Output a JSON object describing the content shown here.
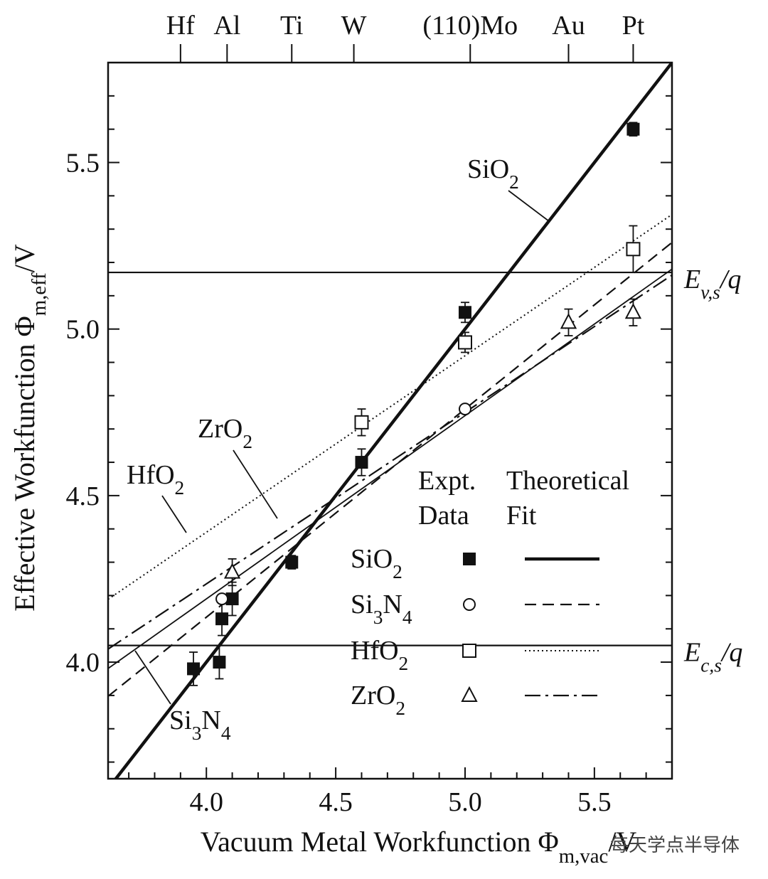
{
  "chart_data": {
    "type": "scatter",
    "xlabel": "Vacuum Metal Workfunction Φm,vac/V",
    "ylabel": "Effective Workfunction Φm,eff/V",
    "xlim": [
      3.62,
      5.8
    ],
    "ylim": [
      3.65,
      5.8
    ],
    "x_ticks": [
      "4.0",
      "4.5",
      "5.0",
      "5.5"
    ],
    "y_ticks": [
      "4.0",
      "4.5",
      "5.0",
      "5.5"
    ],
    "x_tick_values": [
      4.0,
      4.5,
      5.0,
      5.5
    ],
    "y_tick_values": [
      4.0,
      4.5,
      5.0,
      5.5
    ],
    "x_minor_step": 0.1,
    "y_minor_step": 0.1,
    "top_axis_metals": [
      {
        "label": "Hf",
        "x": 3.9
      },
      {
        "label": "Al",
        "x": 4.08
      },
      {
        "label": "Ti",
        "x": 4.33
      },
      {
        "label": "W",
        "x": 4.57
      },
      {
        "label": "(110)Mo",
        "x": 5.02
      },
      {
        "label": "Au",
        "x": 5.4
      },
      {
        "label": "Pt",
        "x": 5.65
      }
    ],
    "reference_lines": [
      {
        "label": "Ev,s/q",
        "y": 5.17
      },
      {
        "label": "Ec,s/q",
        "y": 4.05
      }
    ],
    "series": [
      {
        "name": "SiO2",
        "marker": "filled-square",
        "line_style": "thick-solid",
        "fit": {
          "slope": 1.0,
          "intercept": 0.0
        },
        "points": [
          {
            "x": 3.95,
            "y": 3.98,
            "err": 0.05
          },
          {
            "x": 4.05,
            "y": 4.0,
            "err": 0.05
          },
          {
            "x": 4.06,
            "y": 4.13,
            "err": 0.05
          },
          {
            "x": 4.1,
            "y": 4.19,
            "err": 0.05
          },
          {
            "x": 4.33,
            "y": 4.3,
            "err": 0.02
          },
          {
            "x": 4.6,
            "y": 4.6,
            "err": 0.04
          },
          {
            "x": 5.0,
            "y": 5.05,
            "err": 0.03
          },
          {
            "x": 5.65,
            "y": 5.6,
            "err": 0.02
          }
        ]
      },
      {
        "name": "Si3N4",
        "marker": "open-circle",
        "line_style": "dashed",
        "fit": {
          "slope": 0.625,
          "intercept": 1.635
        },
        "points": [
          {
            "x": 4.06,
            "y": 4.19,
            "err": 0
          },
          {
            "x": 5.0,
            "y": 4.76,
            "err": 0
          }
        ]
      },
      {
        "name": "HfO2",
        "marker": "open-square",
        "line_style": "dotted",
        "fit": {
          "slope": 0.53,
          "intercept": 2.27
        },
        "points": [
          {
            "x": 4.6,
            "y": 4.72,
            "err": 0.04
          },
          {
            "x": 5.0,
            "y": 4.96,
            "err": 0.03
          },
          {
            "x": 5.65,
            "y": 5.24,
            "err": 0.07
          }
        ]
      },
      {
        "name": "ZrO2",
        "marker": "open-triangle",
        "line_style": "dash-dot",
        "fit": {
          "slope": 0.515,
          "intercept": 2.175
        },
        "points": [
          {
            "x": 4.1,
            "y": 4.27,
            "err": 0.04
          },
          {
            "x": 5.4,
            "y": 5.02,
            "err": 0.04
          },
          {
            "x": 5.65,
            "y": 5.05,
            "err": 0.04
          }
        ]
      }
    ],
    "thin_solid_line": {
      "slope": 0.55,
      "intercept": 1.99
    },
    "curve_annotations": [
      {
        "text": "SiO2",
        "base": "SiO",
        "sub": "2"
      },
      {
        "text": "HfO2",
        "base": "HfO",
        "sub": "2"
      },
      {
        "text": "ZrO2",
        "base": "ZrO",
        "sub": "2"
      },
      {
        "text": "Si3N4",
        "base": "Si",
        "sub": "3",
        "base2": "N",
        "sub2": "4"
      }
    ],
    "legend": {
      "header_col1": [
        "Expt.",
        "Data"
      ],
      "header_col2": [
        "Theoretical",
        "Fit"
      ],
      "entries": [
        {
          "name": "SiO2",
          "base": "SiO",
          "sub": "2",
          "base2": "",
          "sub2": ""
        },
        {
          "name": "Si3N4",
          "base": "Si",
          "sub": "3",
          "base2": "N",
          "sub2": "4"
        },
        {
          "name": "HfO2",
          "base": "HfO",
          "sub": "2",
          "base2": "",
          "sub2": ""
        },
        {
          "name": "ZrO2",
          "base": "ZrO",
          "sub": "2",
          "base2": "",
          "sub2": ""
        }
      ]
    }
  },
  "labels": {
    "xlabel_main": "Vacuum Metal Workfunction Φ",
    "xlabel_sub": "m,vac",
    "xlabel_tail": "/V",
    "ylabel_main": "Effective Workfunction Φ",
    "ylabel_sub": "m,eff",
    "ylabel_tail": "/V",
    "ev_main": "E",
    "ev_sub": "v,s",
    "ev_tail": "/q",
    "ec_main": "E",
    "ec_sub": "c,s",
    "ec_tail": "/q",
    "watermark": "每天学点半导体"
  }
}
